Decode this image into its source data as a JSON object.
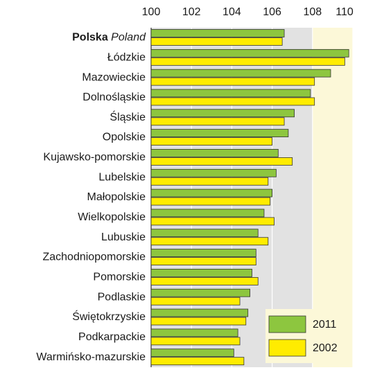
{
  "chart_data": {
    "type": "bar",
    "orientation": "horizontal",
    "categories": [
      [
        "Polska",
        "Poland"
      ],
      "Łódzkie",
      "Mazowieckie",
      "Dolnośląskie",
      "Śląskie",
      "Opolskie",
      "Kujawsko-pomorskie",
      "Lubelskie",
      "Małopolskie",
      "Wielkopolskie",
      "Lubuskie",
      "Zachodniopomorskie",
      "Pomorskie",
      "Podlaskie",
      "Świętokrzyskie",
      "Podkarpackie",
      "Warmińsko-mazurskie"
    ],
    "series": [
      {
        "name": "2011",
        "color": "#8dc63f",
        "values": [
          106.6,
          109.8,
          108.9,
          107.9,
          107.1,
          106.8,
          106.3,
          106.2,
          106.0,
          105.6,
          105.3,
          105.2,
          105.0,
          104.9,
          104.8,
          104.3,
          104.1
        ]
      },
      {
        "name": "2002",
        "color": "#ffec00",
        "values": [
          106.5,
          109.6,
          108.1,
          108.1,
          106.6,
          106.0,
          107.0,
          105.8,
          105.9,
          106.1,
          105.8,
          105.2,
          105.3,
          104.4,
          104.7,
          104.4,
          104.6
        ]
      }
    ],
    "xlim": [
      100,
      110
    ],
    "xticks": [
      100,
      102,
      104,
      106,
      108,
      110
    ],
    "grid": true,
    "legend": "lower right"
  }
}
